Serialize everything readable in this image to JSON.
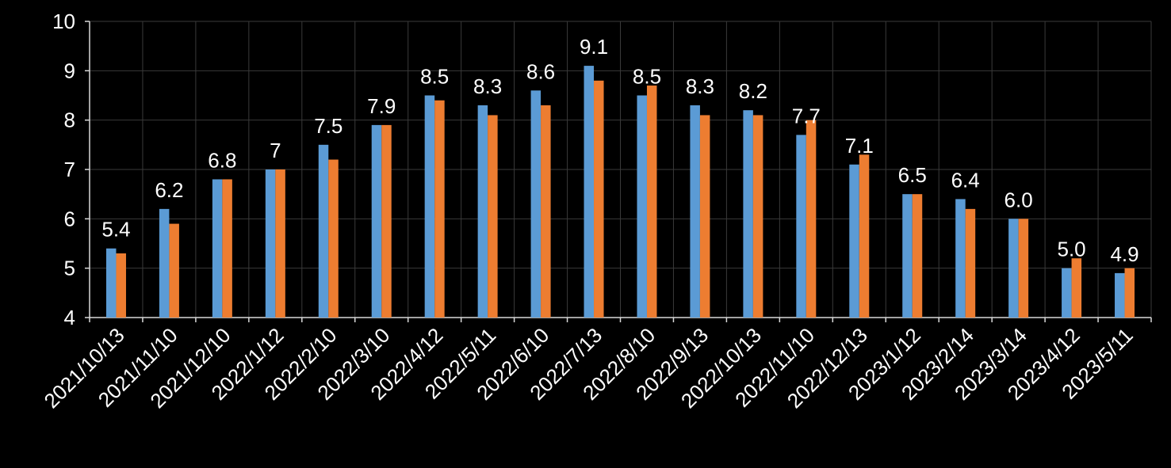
{
  "chart_data": {
    "type": "bar",
    "categories": [
      "2021/10/13",
      "2021/11/10",
      "2021/12/10",
      "2022/1/12",
      "2022/2/10",
      "2022/3/10",
      "2022/4/12",
      "2022/5/11",
      "2022/6/10",
      "2022/7/13",
      "2022/8/10",
      "2022/9/13",
      "2022/10/13",
      "2022/11/10",
      "2022/12/13",
      "2023/1/12",
      "2023/2/14",
      "2023/3/14",
      "2023/4/12",
      "2023/5/11"
    ],
    "series": [
      {
        "color": "#5b9bd5",
        "values": [
          5.4,
          6.2,
          6.8,
          7.0,
          7.5,
          7.9,
          8.5,
          8.3,
          8.6,
          9.1,
          8.5,
          8.3,
          8.2,
          7.7,
          7.1,
          6.5,
          6.4,
          6.0,
          5.0,
          4.9
        ],
        "labels": [
          "5.4",
          "6.2",
          "6.8",
          "7",
          "7.5",
          "7.9",
          "8.5",
          "8.3",
          "8.6",
          "9.1",
          "8.5",
          "8.3",
          "8.2",
          "7.7",
          "7.1",
          "6.5",
          "6.4",
          "6.0",
          "5.0",
          "4.9"
        ]
      },
      {
        "color": "#ed7d31",
        "values": [
          5.3,
          5.9,
          6.8,
          7.0,
          7.2,
          7.9,
          8.4,
          8.1,
          8.3,
          8.8,
          8.7,
          8.1,
          8.1,
          8.0,
          7.3,
          6.5,
          6.2,
          6.0,
          5.2,
          5.0
        ]
      }
    ],
    "yticks": [
      "4",
      "5",
      "6",
      "7",
      "8",
      "9",
      "10"
    ],
    "ylim": [
      4,
      10
    ],
    "grid": true,
    "xlabel": "",
    "ylabel": "",
    "title": ""
  }
}
